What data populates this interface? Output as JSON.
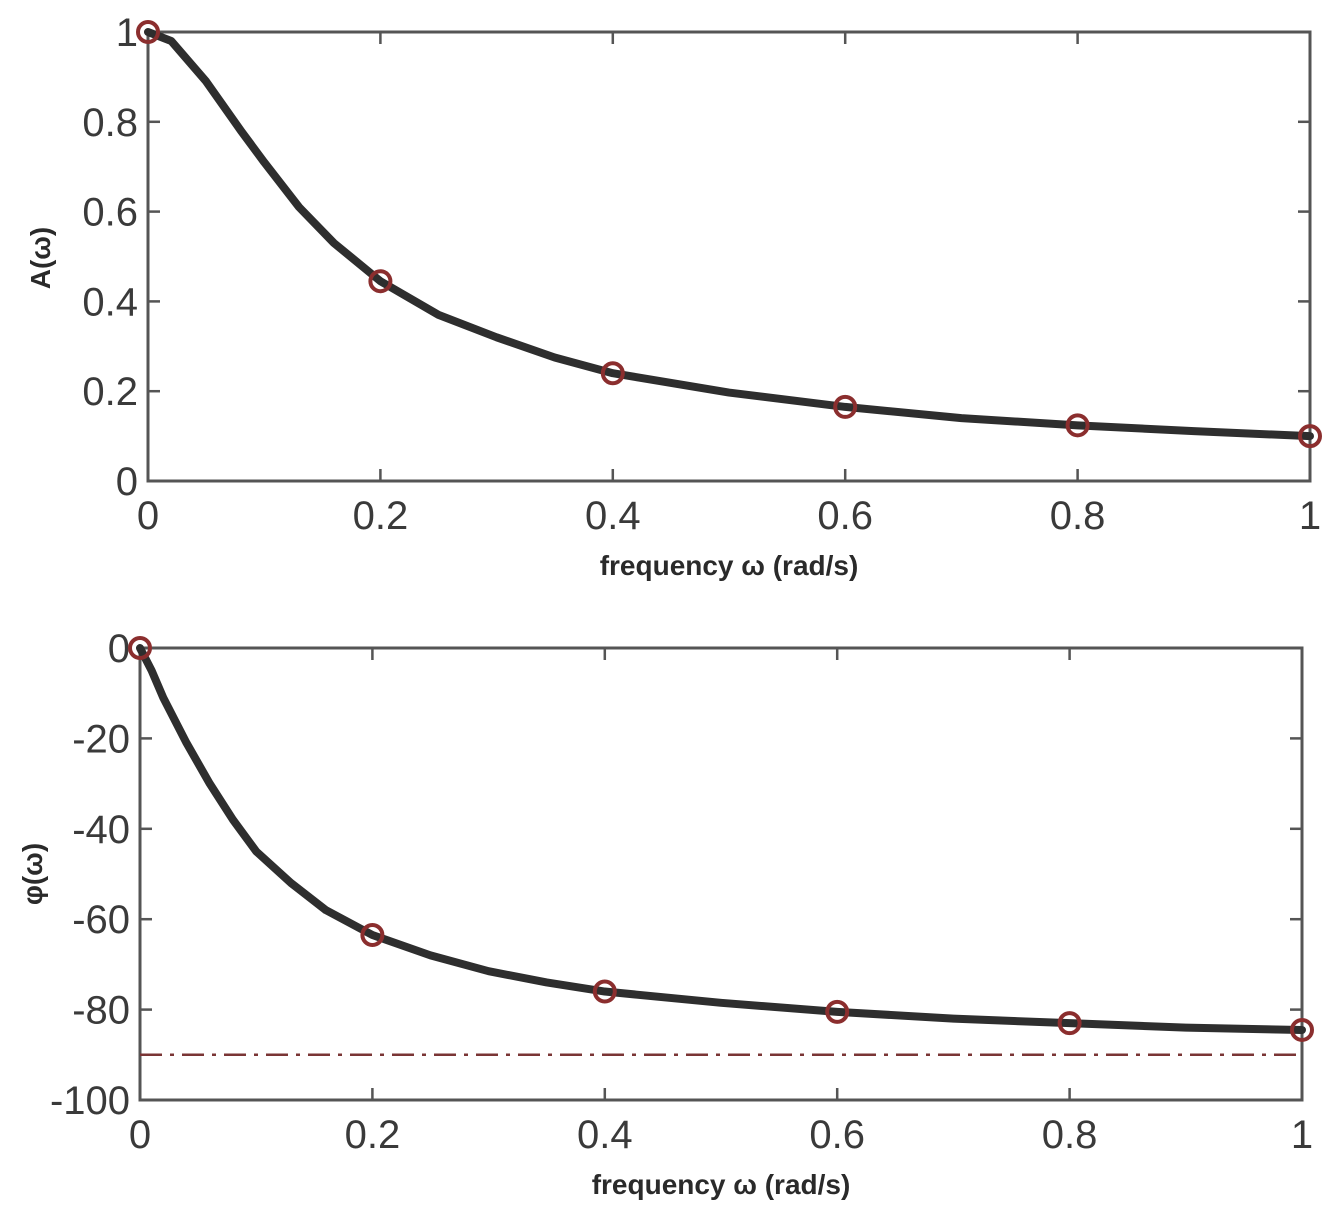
{
  "colors": {
    "curve": "#2e2e2e",
    "marker": "#8b2e2e",
    "reference_line": "#7a3535",
    "axes": "#555555"
  },
  "chart_data": [
    {
      "type": "line",
      "title": "",
      "xlabel": "frequency ω (rad/s)",
      "ylabel": "A(ω)",
      "xlim": [
        0,
        1
      ],
      "ylim": [
        0,
        1
      ],
      "xticks": [
        "0",
        "0.2",
        "0.4",
        "0.6",
        "0.8",
        "1"
      ],
      "yticks": [
        "0",
        "0.2",
        "0.4",
        "0.6",
        "0.8",
        "1"
      ],
      "grid": false,
      "series": [
        {
          "style": "solid",
          "x": [
            0,
            0.02,
            0.05,
            0.08,
            0.1,
            0.13,
            0.16,
            0.2,
            0.25,
            0.3,
            0.35,
            0.4,
            0.5,
            0.6,
            0.7,
            0.8,
            0.9,
            1.0
          ],
          "values": [
            1.0,
            0.98,
            0.89,
            0.78,
            0.71,
            0.61,
            0.53,
            0.445,
            0.37,
            0.32,
            0.275,
            0.24,
            0.197,
            0.165,
            0.14,
            0.124,
            0.111,
            0.1
          ]
        }
      ],
      "markers": {
        "x": [
          0,
          0.2,
          0.4,
          0.6,
          0.8,
          1.0
        ],
        "values": [
          1.0,
          0.445,
          0.24,
          0.165,
          0.124,
          0.1
        ]
      }
    },
    {
      "type": "line",
      "title": "",
      "xlabel": "frequency ω (rad/s)",
      "ylabel": "φ(ω)",
      "xlim": [
        0,
        1
      ],
      "ylim": [
        -100,
        0
      ],
      "xticks": [
        "0",
        "0.2",
        "0.4",
        "0.6",
        "0.8",
        "1"
      ],
      "yticks": [
        "-100",
        "-80",
        "-60",
        "-40",
        "-20",
        "0"
      ],
      "grid": false,
      "series": [
        {
          "style": "solid",
          "x": [
            0,
            0.01,
            0.02,
            0.04,
            0.06,
            0.08,
            0.1,
            0.13,
            0.16,
            0.2,
            0.25,
            0.3,
            0.35,
            0.4,
            0.5,
            0.6,
            0.7,
            0.8,
            0.9,
            1.0
          ],
          "values": [
            0,
            -5,
            -11,
            -21,
            -30,
            -38,
            -45,
            -52,
            -58,
            -63.5,
            -68,
            -71.5,
            -74,
            -76,
            -78.5,
            -80.5,
            -82,
            -83,
            -84,
            -84.5
          ]
        },
        {
          "style": "dash-dot",
          "x": [
            0,
            1
          ],
          "values": [
            -90,
            -90
          ]
        }
      ],
      "markers": {
        "x": [
          0,
          0.2,
          0.4,
          0.6,
          0.8,
          1.0
        ],
        "values": [
          0,
          -63.5,
          -76,
          -80.5,
          -83,
          -84.5
        ]
      }
    }
  ]
}
